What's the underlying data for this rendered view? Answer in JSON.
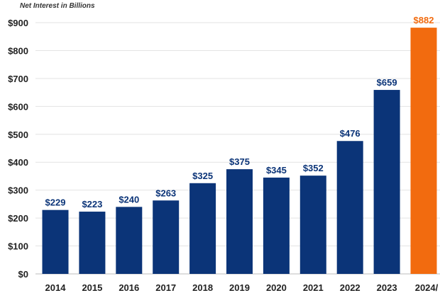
{
  "chart_data": {
    "type": "bar",
    "title": "Net Interest in Billions",
    "categories": [
      "2014",
      "2015",
      "2016",
      "2017",
      "2018",
      "2019",
      "2020",
      "2021",
      "2022",
      "2023",
      "2024/"
    ],
    "values": [
      229,
      223,
      240,
      263,
      325,
      375,
      345,
      352,
      476,
      659,
      882
    ],
    "data_labels": [
      "$229",
      "$223",
      "$240",
      "$263",
      "$325",
      "$375",
      "$345",
      "$352",
      "$476",
      "$659",
      "$882"
    ],
    "ylim": [
      0,
      900
    ],
    "yticks": [
      "$0",
      "$100",
      "$200",
      "$300",
      "$400",
      "$500",
      "$600",
      "$700",
      "$800",
      "$900"
    ],
    "grid": true,
    "colors": {
      "default": "#0b3478",
      "highlight": "#f26b0f"
    },
    "highlight_index": 10
  }
}
